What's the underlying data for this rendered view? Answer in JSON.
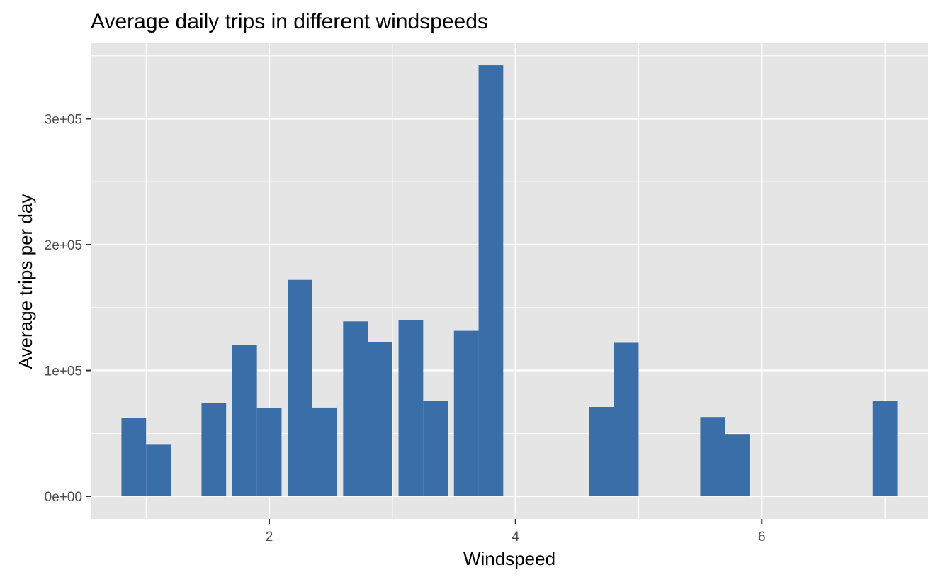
{
  "chart_data": {
    "type": "bar",
    "title": "Average daily trips in different windspeeds",
    "xlabel": "Windspeed",
    "ylabel": "Average trips per day",
    "x": [
      0.9,
      1.1,
      1.55,
      1.8,
      2.0,
      2.25,
      2.45,
      2.7,
      2.9,
      3.15,
      3.35,
      3.6,
      3.8,
      4.7,
      4.9,
      5.6,
      5.8,
      7.0
    ],
    "values": [
      62500,
      41500,
      74000,
      120500,
      70000,
      172000,
      70500,
      139000,
      122500,
      140000,
      76000,
      131500,
      342500,
      71000,
      122000,
      63000,
      49500,
      75500
    ],
    "bar_width": 0.2,
    "xlim": [
      0.55,
      7.35
    ],
    "ylim": [
      -18000,
      360000
    ],
    "x_ticks": [
      2,
      4,
      6
    ],
    "x_tick_labels": [
      "2",
      "4",
      "6"
    ],
    "y_ticks": [
      0,
      100000,
      200000,
      300000
    ],
    "y_tick_labels": [
      "0e+00",
      "1e+05",
      "2e+05",
      "3e+05"
    ],
    "grid": true,
    "bar_color": "#3A6EA8",
    "panel_color": "#E5E5E5",
    "grid_color": "#FFFFFF"
  }
}
